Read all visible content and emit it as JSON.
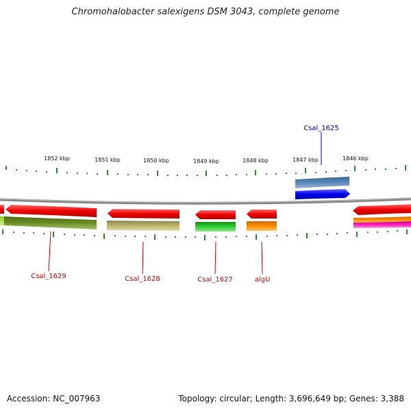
{
  "title": "Chromohalobacter salexigens DSM 3043, complete genome",
  "footer": {
    "accession": "Accession: NC_007963",
    "summary": "Topology: circular; Length: 3,696,649 bp; Genes: 3,388"
  },
  "scale_labels": [
    "1852 kbp",
    "1851 kbp",
    "1850 kbp",
    "1849 kbp",
    "1848 kbp",
    "1847 kbp",
    "1846 kbp"
  ],
  "gene_labels": [
    {
      "text": "Csal_1625",
      "color": "#0000aa"
    },
    {
      "text": "Csal_1629",
      "color": "#cc0000"
    },
    {
      "text": "Csal_1628",
      "color": "#cc0000"
    },
    {
      "text": "Csal_1627",
      "color": "#cc0000"
    },
    {
      "text": "algU",
      "color": "#cc0000"
    }
  ],
  "colors": {
    "backbone": "#888888",
    "forward_gene": "#0000ee",
    "forward_cog": "#4a7aa8",
    "reverse_gene": "#ee0000",
    "tick": "#2e8b2e"
  }
}
